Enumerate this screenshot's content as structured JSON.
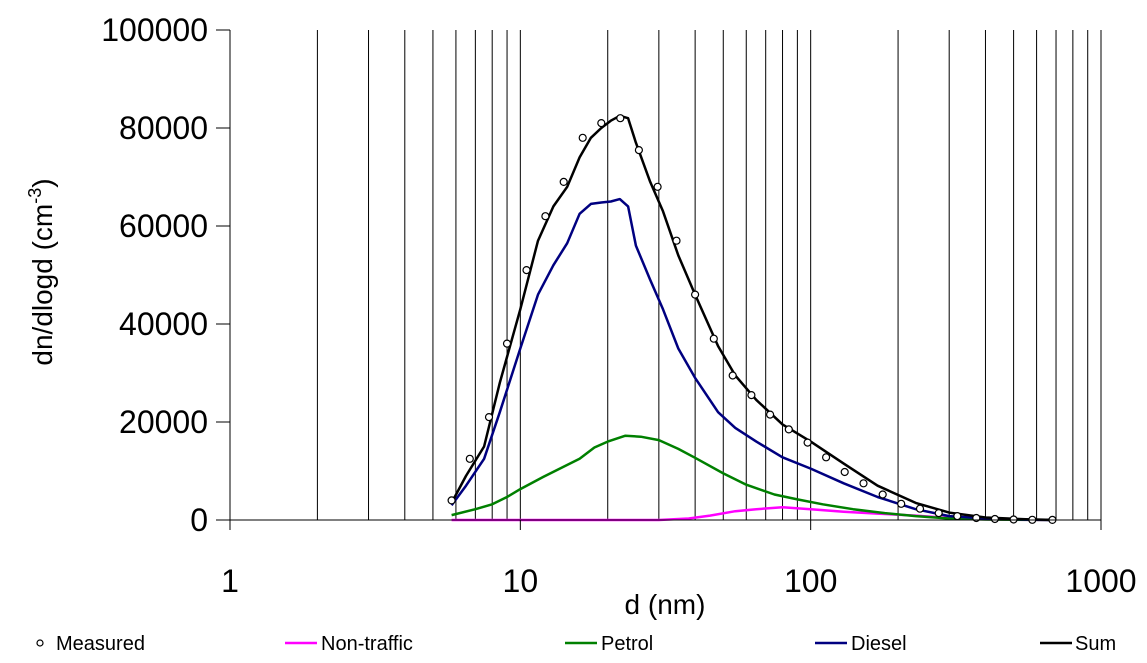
{
  "chart_data": {
    "type": "line",
    "xlabel": "d (nm)",
    "ylabel": "dn/dlogd (cm",
    "ylabel_sup": "-3",
    "ylabel_close": ")",
    "x_scale": "log",
    "xlim": [
      1,
      1000
    ],
    "ylim": [
      0,
      100000
    ],
    "x_ticks": [
      1,
      10,
      100,
      1000
    ],
    "x_tick_labels": [
      "1",
      "10",
      "100",
      "1000"
    ],
    "y_ticks": [
      0,
      20000,
      40000,
      60000,
      80000,
      100000
    ],
    "y_tick_labels": [
      "0",
      "20000",
      "40000",
      "60000",
      "80000",
      "100000"
    ],
    "grid": "vertical-minor-log",
    "legend_position": "bottom",
    "colors": {
      "measured": "#000000",
      "non_traffic": "#ff00ff",
      "petrol": "#008000",
      "diesel": "#000080",
      "sum": "#000000"
    },
    "series": [
      {
        "name": "Measured",
        "style": "markers",
        "color": "#000000",
        "x": [
          5.8,
          6.7,
          7.8,
          9.0,
          10.5,
          12.2,
          14.1,
          16.4,
          19.0,
          22.1,
          25.6,
          29.7,
          34.5,
          40.0,
          46.4,
          53.9,
          62.5,
          72.5,
          84.1,
          97.6,
          113,
          131,
          152,
          177,
          205,
          238,
          276,
          320,
          372,
          431,
          500,
          580,
          680
        ],
        "y": [
          4000,
          12500,
          21000,
          36000,
          51000,
          62000,
          69000,
          78000,
          81000,
          82000,
          75500,
          68000,
          57000,
          46000,
          37000,
          29500,
          25500,
          21500,
          18500,
          15800,
          12800,
          9800,
          7500,
          5200,
          3300,
          2300,
          1400,
          800,
          400,
          200,
          100,
          50,
          20
        ]
      },
      {
        "name": "Non-traffic",
        "style": "line",
        "color": "#ff00ff",
        "x": [
          5.8,
          10,
          20,
          30,
          38,
          45,
          55,
          65,
          80,
          100,
          130,
          170,
          230,
          300,
          400,
          500,
          700
        ],
        "y": [
          0,
          0,
          0,
          0,
          300,
          900,
          1800,
          2200,
          2600,
          2200,
          1700,
          1300,
          900,
          400,
          150,
          60,
          0
        ]
      },
      {
        "name": "Petrol",
        "style": "line",
        "color": "#008000",
        "x": [
          5.8,
          7,
          8,
          9,
          10,
          12,
          14,
          16,
          18,
          20,
          23,
          26,
          30,
          35,
          40,
          50,
          60,
          75,
          90,
          110,
          140,
          180,
          230,
          300,
          400,
          500,
          700
        ],
        "y": [
          1000,
          2200,
          3200,
          4700,
          6300,
          8800,
          10800,
          12500,
          14800,
          16000,
          17200,
          17000,
          16300,
          14500,
          12700,
          9500,
          7200,
          5200,
          4200,
          3200,
          2200,
          1400,
          800,
          300,
          100,
          50,
          0
        ]
      },
      {
        "name": "Diesel",
        "style": "line",
        "color": "#000080",
        "x": [
          5.8,
          6.5,
          7.5,
          8.5,
          10,
          11.5,
          13,
          14.5,
          16,
          17.5,
          19,
          20.5,
          22,
          23.5,
          25,
          28,
          31,
          35,
          40,
          48,
          55,
          65,
          80,
          100,
          130,
          170,
          230,
          300,
          400,
          550,
          700
        ],
        "y": [
          3000,
          7000,
          12500,
          22000,
          35000,
          46000,
          52000,
          56500,
          62500,
          64500,
          64800,
          65000,
          65500,
          64000,
          56000,
          49000,
          43000,
          35000,
          29000,
          22000,
          18800,
          16000,
          12800,
          10500,
          7500,
          4700,
          2200,
          800,
          300,
          80,
          0
        ]
      },
      {
        "name": "Sum",
        "style": "line",
        "color": "#000000",
        "x": [
          5.8,
          6.5,
          7.5,
          8.5,
          10,
          11.5,
          13,
          14.5,
          16,
          17.5,
          19,
          20.5,
          22,
          23.5,
          25,
          28,
          31,
          35,
          40,
          48,
          55,
          65,
          80,
          100,
          130,
          170,
          230,
          300,
          400,
          550,
          700
        ],
        "y": [
          3500,
          9000,
          15000,
          28000,
          43000,
          57000,
          64000,
          68000,
          74000,
          78000,
          80000,
          81500,
          82500,
          82000,
          77000,
          69000,
          63000,
          54000,
          46000,
          35500,
          29500,
          24500,
          19500,
          16000,
          11500,
          7000,
          3500,
          1500,
          500,
          150,
          0
        ]
      }
    ]
  }
}
